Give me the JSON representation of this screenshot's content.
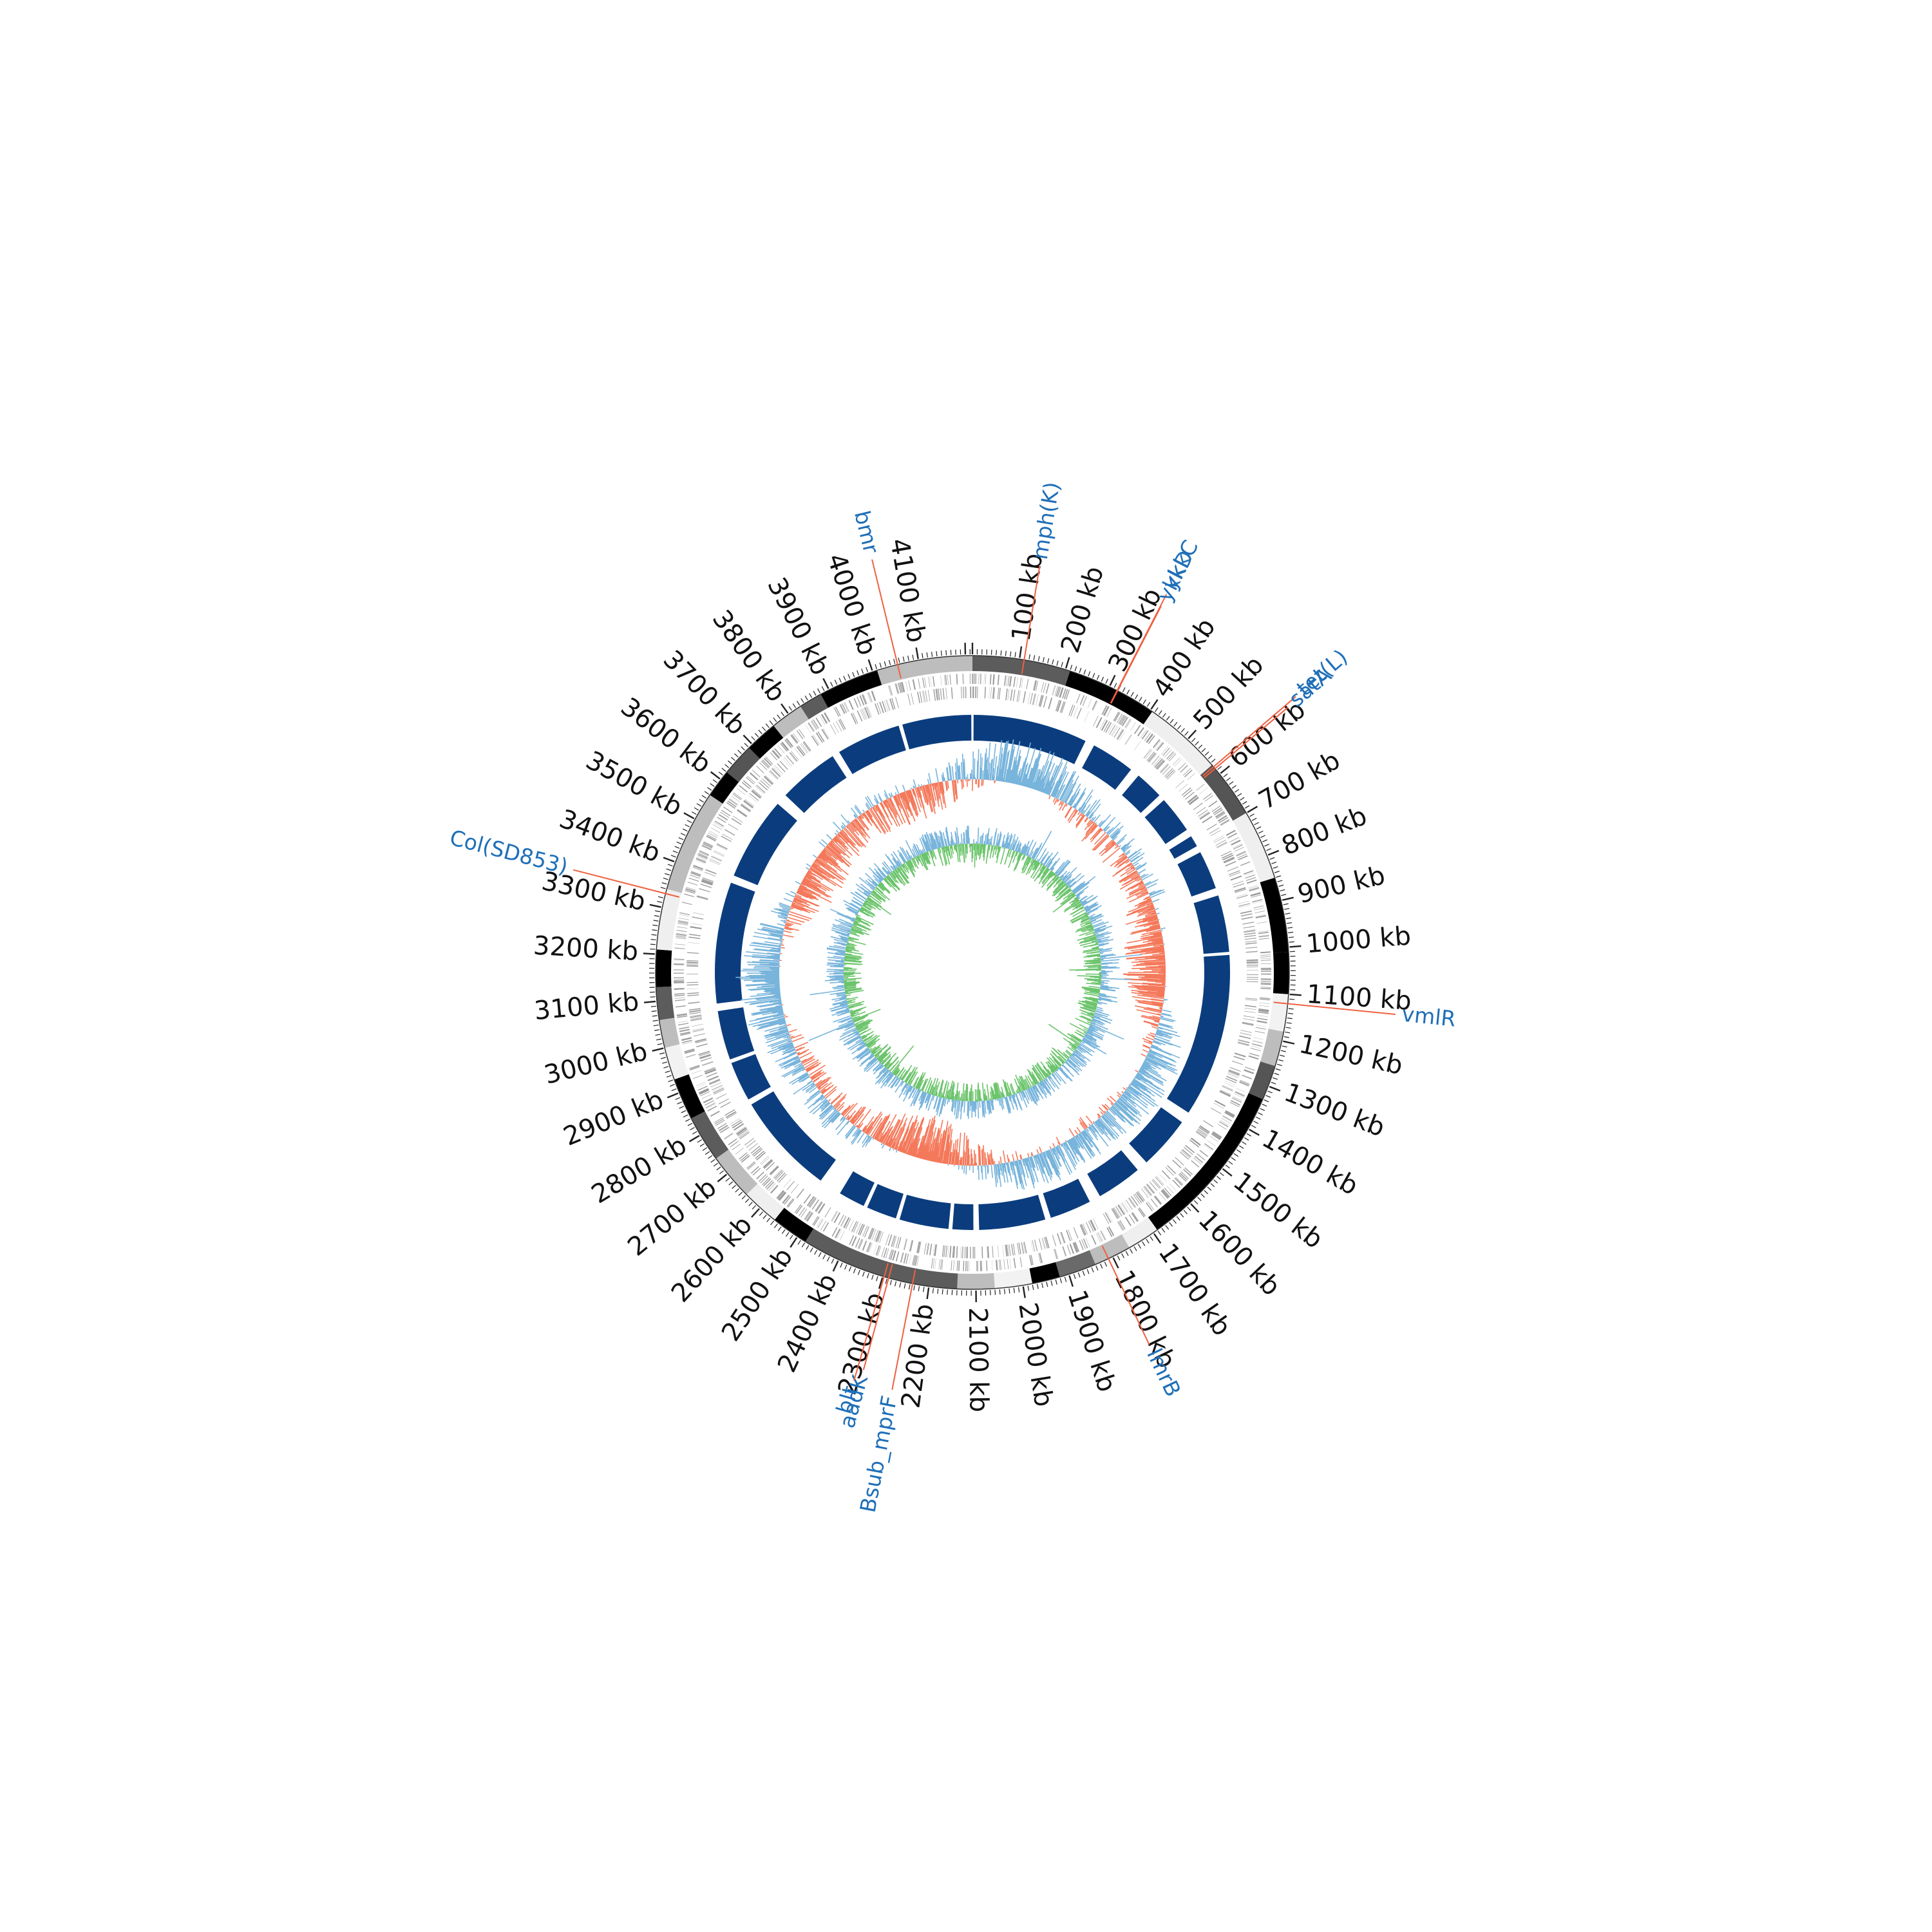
{
  "genome": {
    "total_kb": 4215,
    "position_labels": [
      "100 kb",
      "200 kb",
      "300 kb",
      "400 kb",
      "500 kb",
      "600 kb",
      "700 kb",
      "800 kb",
      "900 kb",
      "1000 kb",
      "1100 kb",
      "1200 kb",
      "1300 kb",
      "1400 kb",
      "1500 kb",
      "1600 kb",
      "1700 kb",
      "1800 kb",
      "1900 kb",
      "2000 kb",
      "2100 kb",
      "2200 kb",
      "2300 kb",
      "2400 kb",
      "2500 kb",
      "2600 kb",
      "2700 kb",
      "2800 kb",
      "2900 kb",
      "3000 kb",
      "3100 kb",
      "3200 kb",
      "3300 kb",
      "3400 kb",
      "3500 kb",
      "3600 kb",
      "3700 kb",
      "3800 kb",
      "3900 kb",
      "4000 kb",
      "4100 kb"
    ]
  },
  "contigs_kb": [
    [
      0,
      210,
      "#5c5c5c"
    ],
    [
      210,
      405,
      "#000000"
    ],
    [
      405,
      575,
      "#efefef"
    ],
    [
      575,
      700,
      "#555555"
    ],
    [
      700,
      850,
      "#efefef"
    ],
    [
      850,
      1010,
      "#000000"
    ],
    [
      1010,
      1100,
      "#000000"
    ],
    [
      1100,
      1180,
      "#f2f2f2"
    ],
    [
      1180,
      1255,
      "#bdbdbd"
    ],
    [
      1255,
      1330,
      "#555555"
    ],
    [
      1330,
      1690,
      "#000000"
    ],
    [
      1690,
      1760,
      "#efefef"
    ],
    [
      1760,
      1840,
      "#bdbdbd"
    ],
    [
      1840,
      1920,
      "#6a6a6a"
    ],
    [
      1920,
      1980,
      "#000000"
    ],
    [
      1980,
      2060,
      "#f2f2f2"
    ],
    [
      2060,
      2140,
      "#bdbdbd"
    ],
    [
      2140,
      2480,
      "#5c5c5c"
    ],
    [
      2480,
      2560,
      "#000000"
    ],
    [
      2560,
      2640,
      "#efefef"
    ],
    [
      2640,
      2740,
      "#bdbdbd"
    ],
    [
      2740,
      2840,
      "#5c5c5c"
    ],
    [
      2840,
      2930,
      "#000000"
    ],
    [
      2930,
      3000,
      "#f2f2f2"
    ],
    [
      3000,
      3060,
      "#bdbdbd"
    ],
    [
      3060,
      3130,
      "#5c5c5c"
    ],
    [
      3130,
      3210,
      "#000000"
    ],
    [
      3210,
      3340,
      "#efefef"
    ],
    [
      3340,
      3560,
      "#bdbdbd"
    ],
    [
      3560,
      3620,
      "#000000"
    ],
    [
      3620,
      3690,
      "#555555"
    ],
    [
      3690,
      3760,
      "#000000"
    ],
    [
      3760,
      3830,
      "#bdbdbd"
    ],
    [
      3830,
      3880,
      "#5c5c5c"
    ],
    [
      3880,
      4010,
      "#000000"
    ],
    [
      4010,
      4215,
      "#bdbdbd"
    ]
  ],
  "genes": [
    {
      "name": "mph(K)",
      "kb": 110,
      "color": "#1f6fb8"
    },
    {
      "name": "ykkC",
      "kb": 318,
      "color": "#1f6fb8"
    },
    {
      "name": "ykkD",
      "kb": 319,
      "color": "#1f6fb8"
    },
    {
      "name": "tet(L)",
      "kb": 580,
      "color": "#1f6fb8"
    },
    {
      "name": "satA",
      "kb": 585,
      "color": "#1f6fb8"
    },
    {
      "name": "vmlR",
      "kb": 1120,
      "color": "#1f6fb8"
    },
    {
      "name": "lmrB",
      "kb": 1810,
      "color": "#1f6fb8"
    },
    {
      "name": "Bsub_mprF",
      "kb": 2235,
      "color": "#1f6fb8"
    },
    {
      "name": "aadK",
      "kb": 2287,
      "color": "#1f6fb8"
    },
    {
      "name": "blt",
      "kb": 2297,
      "color": "#1f6fb8"
    },
    {
      "name": "Col(SD853)",
      "kb": 3330,
      "color": "#1f6fb8"
    },
    {
      "name": "bmr",
      "kb": 4055,
      "color": "#1f6fb8"
    }
  ],
  "colors": {
    "blast_ring": "#0b3d7e",
    "gc_content_high": "#78b4db",
    "gc_content_low": "#f4795b",
    "gc_skew_positive": "#78b4db",
    "gc_skew_negative": "#6cc46c",
    "gene_leader": "#f06040",
    "gene_label": "#1f6fb8",
    "feature_track": "#9a9a9a"
  }
}
